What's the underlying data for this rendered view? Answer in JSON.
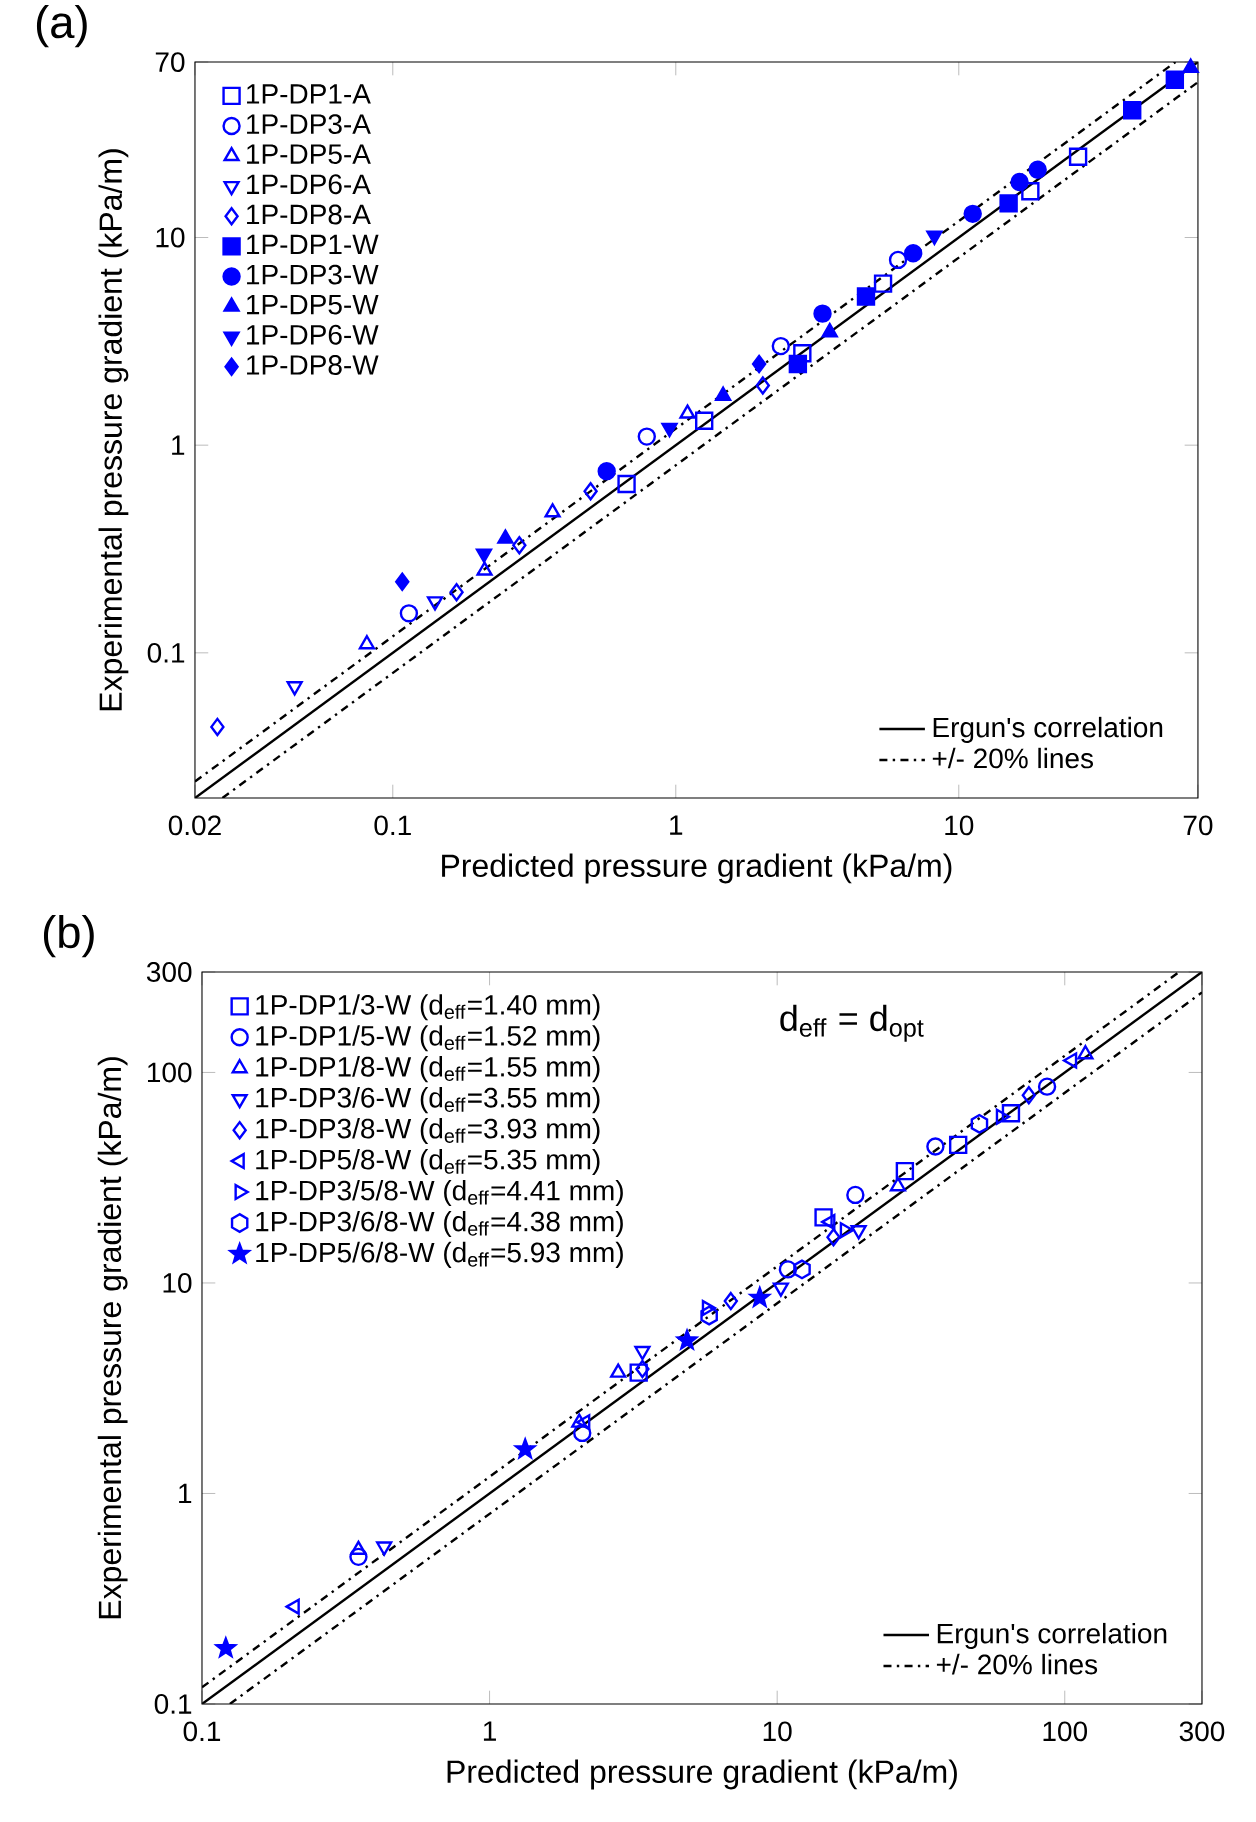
{
  "chart_data": [
    {
      "type": "scatter",
      "title": "(a)",
      "xlabel": "Predicted pressure gradient (kPa/m)",
      "ylabel": "Experimental pressure gradient (kPa/m)",
      "log": "xy",
      "xlim": [
        0.02,
        70
      ],
      "ylim": [
        0.02,
        70
      ],
      "xticks": [
        0.02,
        0.1,
        1,
        10,
        70
      ],
      "yticks": [
        0.1,
        1,
        10,
        70
      ],
      "legend": "top left",
      "series": [
        {
          "name": "1P-DP1-A",
          "color": "#0000ff",
          "marker": "square",
          "x": [
            0.67,
            1.26,
            2.8,
            5.4,
            17.9,
            26.4
          ],
          "values": [
            0.65,
            1.31,
            2.77,
            6.0,
            16.7,
            24.5
          ]
        },
        {
          "name": "1P-DP3-A",
          "color": "#0000ff",
          "marker": "circle",
          "x": [
            0.114,
            0.79,
            2.35,
            6.1
          ],
          "values": [
            0.155,
            1.1,
            3.0,
            7.8
          ]
        },
        {
          "name": "1P-DP5-A",
          "color": "#0000ff",
          "marker": "triangle",
          "x": [
            0.081,
            0.211,
            0.367,
            1.1
          ],
          "values": [
            0.11,
            0.249,
            0.475,
            1.42
          ]
        },
        {
          "name": "1P-DP6-A",
          "color": "#0000ff",
          "marker": "triangle-down",
          "x": [
            0.045,
            0.141
          ],
          "values": [
            0.069,
            0.177
          ]
        },
        {
          "name": "1P-DP8-A",
          "color": "#0000ff",
          "marker": "diamond",
          "x": [
            0.024,
            0.168,
            0.28,
            0.5,
            2.03
          ],
          "values": [
            0.044,
            0.196,
            0.33,
            0.6,
            1.94
          ]
        },
        {
          "name": "1P-DP1-W",
          "color": "#0000ff",
          "marker": "square-filled",
          "x": [
            2.7,
            4.7,
            15,
            41,
            58
          ],
          "values": [
            2.46,
            5.2,
            14.6,
            41,
            57.5
          ]
        },
        {
          "name": "1P-DP3-W",
          "color": "#0000ff",
          "marker": "circle-filled",
          "x": [
            0.57,
            3.3,
            6.9,
            11.2,
            16.4,
            19
          ],
          "values": [
            0.75,
            4.3,
            8.4,
            13.0,
            18.5,
            21.2
          ]
        },
        {
          "name": "1P-DP5-W",
          "color": "#0000ff",
          "marker": "triangle-filled",
          "x": [
            0.25,
            1.47,
            3.5,
            66
          ],
          "values": [
            0.355,
            1.73,
            3.5,
            65.7
          ]
        },
        {
          "name": "1P-DP6-W",
          "color": "#0000ff",
          "marker": "triangle-down-filled",
          "x": [
            0.21,
            0.95,
            8.2
          ],
          "values": [
            0.3,
            1.21,
            10.2
          ]
        },
        {
          "name": "1P-DP8-W",
          "color": "#0000ff",
          "marker": "diamond-filled",
          "x": [
            0.108,
            1.97
          ],
          "values": [
            0.22,
            2.46
          ]
        },
        {
          "type": "line",
          "name": "Ergun's correlation",
          "color": "#000000",
          "line_style": "solid",
          "x": [
            0.02,
            70
          ],
          "values": [
            0.02,
            70
          ]
        },
        {
          "type": "line",
          "name": "+/- 20% lines",
          "color": "#000000",
          "line_style": "dashdot",
          "x": [
            0.02,
            58.3
          ],
          "values": [
            0.024,
            70
          ]
        },
        {
          "type": "line",
          "color": "#000000",
          "line_style": "dashdot",
          "x": [
            0.025,
            70
          ],
          "values": [
            0.02,
            56
          ]
        }
      ]
    },
    {
      "type": "scatter",
      "title": "(b)",
      "xlabel": "Predicted pressure gradient (kPa/m)",
      "ylabel": "Experimental pressure gradient (kPa/m)",
      "log": "xy",
      "xlim": [
        0.1,
        300
      ],
      "ylim": [
        0.1,
        300
      ],
      "xticks": [
        0.1,
        1,
        10,
        100,
        300
      ],
      "yticks": [
        0.1,
        1,
        10,
        100,
        300
      ],
      "legend": "top left",
      "annotations": [
        "d$_{eff}$ = d$_{opt}$"
      ],
      "series": [
        {
          "name": "1P-DP1/3-W (d$_{eff}$=1.40 mm)",
          "color": "#0000ff",
          "marker": "square",
          "x": [
            3.3,
            14.5,
            27.8,
            42.6,
            65
          ],
          "values": [
            3.75,
            20.5,
            34,
            45.3,
            64
          ]
        },
        {
          "name": "1P-DP1/5-W (d$_{eff}$=1.52 mm)",
          "color": "#0000ff",
          "marker": "circle",
          "x": [
            0.35,
            2.1,
            10.9,
            18.7,
            35.5,
            86.8
          ],
          "values": [
            0.5,
            1.94,
            11.6,
            26.2,
            44.5,
            85.6
          ]
        },
        {
          "name": "1P-DP1/8-W (d$_{eff}$=1.55 mm)",
          "color": "#0000ff",
          "marker": "triangle",
          "x": [
            0.35,
            2.05,
            2.8,
            26.3,
            118
          ],
          "values": [
            0.54,
            2.17,
            3.75,
            28.8,
            122
          ]
        },
        {
          "name": "1P-DP3/6-W (d$_{eff}$=3.55 mm)",
          "color": "#0000ff",
          "marker": "triangle-down",
          "x": [
            0.43,
            3.4,
            10.3,
            19.2
          ],
          "values": [
            0.56,
            4.75,
            9.5,
            17.8
          ]
        },
        {
          "name": "1P-DP3/8-W (d$_{eff}$=3.93 mm)",
          "color": "#0000ff",
          "marker": "diamond",
          "x": [
            3.4,
            6.9,
            15.7,
            75
          ],
          "values": [
            3.9,
            8.2,
            16.5,
            78
          ]
        },
        {
          "name": "1P-DP5/8-W (d$_{eff}$=5.35 mm)",
          "color": "#0000ff",
          "marker": "triangle-left",
          "x": [
            0.21,
            2.15,
            15.3,
            106
          ],
          "values": [
            0.29,
            2.18,
            19.5,
            114
          ]
        },
        {
          "name": "1P-DP3/5/8-W (d$_{eff}$=4.41 mm)",
          "color": "#0000ff",
          "marker": "triangle-right",
          "x": [
            5.7,
            17.2,
            60
          ],
          "values": [
            7.6,
            17.8,
            61.6
          ]
        },
        {
          "name": "1P-DP3/6/8-W (d$_{eff}$=4.38 mm)",
          "color": "#0000ff",
          "x": [
            5.8,
            12.2,
            50.5
          ],
          "values": [
            7.0,
            11.6,
            57
          ]
        },
        {
          "name": "1P-DP5/6/8-W (d$_{eff}$=5.93 mm)",
          "color": "#0000ff",
          "marker": "star",
          "x": [
            0.121,
            1.33,
            4.86,
            8.7
          ],
          "values": [
            0.184,
            1.62,
            5.33,
            8.5
          ]
        },
        {
          "type": "line",
          "name": "Ergun's correlation",
          "color": "#000000",
          "line_style": "solid",
          "x": [
            0.1,
            300
          ],
          "values": [
            0.1,
            300
          ]
        },
        {
          "type": "line",
          "name": "+/- 20% lines",
          "color": "#000000",
          "line_style": "dashdot",
          "x": [
            0.1,
            250
          ],
          "values": [
            0.12,
            300
          ]
        },
        {
          "type": "line",
          "color": "#000000",
          "line_style": "dashdot",
          "x": [
            0.125,
            300
          ],
          "values": [
            0.1,
            240
          ]
        }
      ]
    }
  ]
}
